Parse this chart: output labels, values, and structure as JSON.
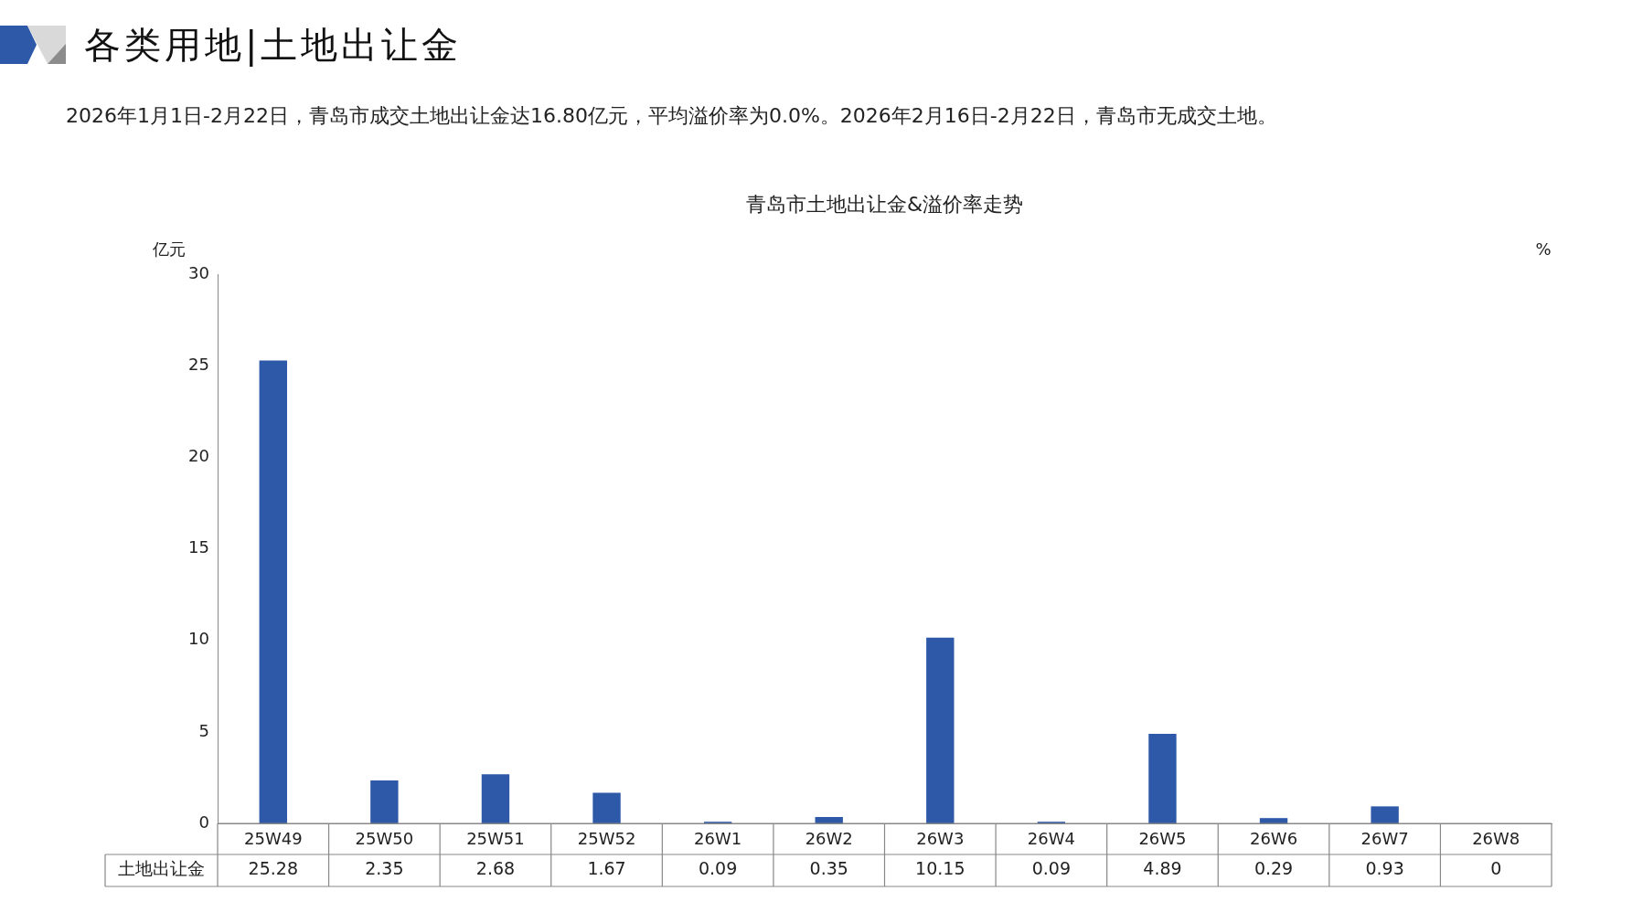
{
  "chart_data": {
    "type": "bar",
    "title": "青岛市土地出让金&溢价率走势",
    "subtitle": "2026年1月1日-2月22日，青岛市成交土地出让金达16.80亿元，平均溢价率为0.0%。2026年2月16日-2月22日，青岛市无成交土地。",
    "annotations": [
      "各类用地|土地出让金"
    ],
    "ylabel": "亿元",
    "y2label": "%",
    "categories": [
      "25W49",
      "25W50",
      "25W51",
      "25W52",
      "26W1",
      "26W2",
      "26W3",
      "26W4",
      "26W5",
      "26W6",
      "26W7",
      "26W8"
    ],
    "series": [
      {
        "name": "土地出让金",
        "color": "#2e59a8",
        "values": [
          25.28,
          2.35,
          2.68,
          1.67,
          0.09,
          0.35,
          10.15,
          0.09,
          4.89,
          0.29,
          0.93,
          0
        ]
      }
    ],
    "ylim": [
      0,
      30
    ],
    "yticks": [
      0,
      5,
      10,
      15,
      20,
      25,
      30
    ],
    "grid": false,
    "legend": false,
    "data_labels": true
  }
}
